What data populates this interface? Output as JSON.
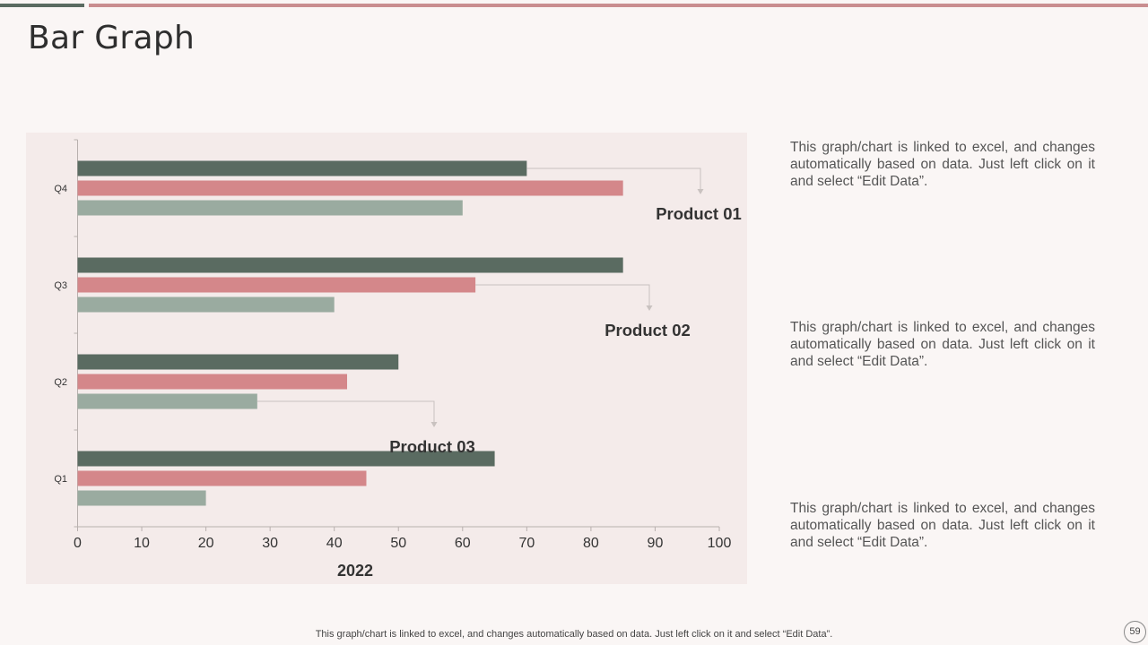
{
  "page": {
    "title": "Bar Graph",
    "footer": "This graph/chart is linked to excel,  and changes automatically based on data. Just left click on it and select “Edit Data”.",
    "page_number": "59"
  },
  "descriptions": [
    "This graph/chart is linked to excel, and changes automatically based on data. Just left click on it and select “Edit Data”.",
    "This graph/chart is linked to excel, and changes automatically based on data. Just left click on it and select “Edit Data”.",
    "This graph/chart is linked to excel, and changes automatically based on data. Just left click on it and select “Edit Data”."
  ],
  "colors": {
    "product_01": "#5a6b61",
    "product_02": "#d4878a",
    "product_03": "#9aaba0",
    "accent_dark": "#5a6b61",
    "accent_pink": "#c98d8f",
    "panel_bg": "#f4ebea"
  },
  "chart_data": {
    "type": "bar",
    "orientation": "horizontal",
    "title": "",
    "xlabel": "2022",
    "ylabel": "",
    "categories": [
      "Q1",
      "Q2",
      "Q3",
      "Q4"
    ],
    "series": [
      {
        "name": "Product 01",
        "values": [
          65,
          50,
          85,
          70
        ]
      },
      {
        "name": "Product 02",
        "values": [
          45,
          42,
          62,
          85
        ]
      },
      {
        "name": "Product 03",
        "values": [
          20,
          28,
          40,
          60
        ]
      }
    ],
    "xlim": [
      0,
      100
    ],
    "xticks": [
      0,
      10,
      20,
      30,
      40,
      50,
      60,
      70,
      80,
      90,
      100
    ],
    "grid": false,
    "callouts": [
      {
        "label": "Product 01",
        "series": "Product 01",
        "category": "Q4"
      },
      {
        "label": "Product 02",
        "series": "Product 02",
        "category": "Q3"
      },
      {
        "label": "Product 03",
        "series": "Product 03",
        "category": "Q2"
      }
    ]
  }
}
